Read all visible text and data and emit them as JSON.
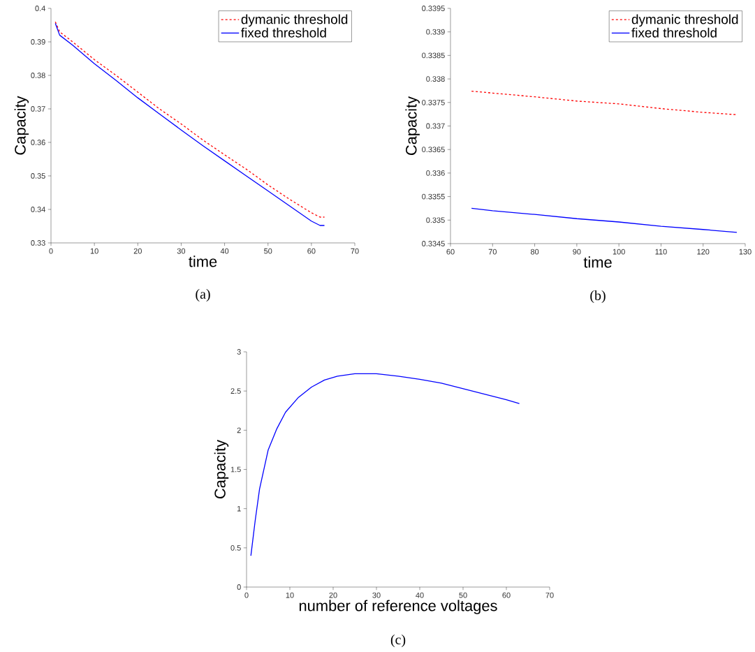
{
  "chart_data": [
    {
      "type": "line",
      "xlabel": "time",
      "ylabel": "Capacity",
      "xlim": [
        0,
        70
      ],
      "ylim": [
        0.33,
        0.4
      ],
      "xticks": [
        0,
        10,
        20,
        30,
        40,
        50,
        60,
        70
      ],
      "yticks": [
        0.33,
        0.34,
        0.35,
        0.36,
        0.37,
        0.38,
        0.39,
        0.4
      ],
      "legend": "top right",
      "grid": false,
      "marker": "none",
      "annotations": [
        "(a)"
      ],
      "x": [
        1,
        2,
        5,
        10,
        15,
        20,
        25,
        30,
        35,
        40,
        45,
        50,
        55,
        60,
        62,
        63
      ],
      "series": [
        {
          "name": "dymanic threshold",
          "color": "#ff0000",
          "line_style": "dashed",
          "values": [
            0.396,
            0.393,
            0.39,
            0.3847,
            0.38,
            0.375,
            0.37,
            0.3655,
            0.3607,
            0.3563,
            0.352,
            0.3473,
            0.343,
            0.339,
            0.3377,
            0.3377
          ]
        },
        {
          "name": "fixed threshold",
          "color": "#0000ff",
          "line_style": "solid",
          "values": [
            0.3955,
            0.392,
            0.389,
            0.3835,
            0.3785,
            0.3733,
            0.3685,
            0.3637,
            0.359,
            0.3545,
            0.35,
            0.3455,
            0.341,
            0.3365,
            0.3352,
            0.3352
          ]
        }
      ]
    },
    {
      "type": "line",
      "xlabel": "time",
      "ylabel": "Capacity",
      "xlim": [
        60,
        130
      ],
      "ylim": [
        0.3345,
        0.3395
      ],
      "xticks": [
        60,
        70,
        80,
        90,
        100,
        110,
        120,
        130
      ],
      "yticks": [
        0.3345,
        0.335,
        0.3355,
        0.336,
        0.3365,
        0.337,
        0.3375,
        0.338,
        0.3385,
        0.339,
        0.3395
      ],
      "legend": "top right",
      "grid": false,
      "marker": "none",
      "annotations": [
        "(b)"
      ],
      "x": [
        65,
        70,
        80,
        90,
        100,
        110,
        120,
        128
      ],
      "series": [
        {
          "name": "dymanic threshold",
          "color": "#ff0000",
          "line_style": "dashed",
          "values": [
            0.33774,
            0.3377,
            0.33762,
            0.33753,
            0.33747,
            0.33737,
            0.33729,
            0.33724
          ]
        },
        {
          "name": "fixed threshold",
          "color": "#0000ff",
          "line_style": "solid",
          "values": [
            0.33525,
            0.3352,
            0.33512,
            0.33503,
            0.33496,
            0.33487,
            0.3348,
            0.33474
          ]
        }
      ]
    },
    {
      "type": "line",
      "xlabel": "number of reference voltages",
      "ylabel": "Capacity",
      "xlim": [
        0,
        70
      ],
      "ylim": [
        0,
        3
      ],
      "xticks": [
        0,
        10,
        20,
        30,
        40,
        50,
        60,
        70
      ],
      "yticks": [
        0,
        0.5,
        1,
        1.5,
        2,
        2.5,
        3
      ],
      "legend": false,
      "grid": false,
      "marker": "none",
      "annotations": [
        "(c)"
      ],
      "x": [
        1,
        2,
        3,
        5,
        7,
        9,
        12,
        15,
        18,
        21,
        25,
        30,
        35,
        40,
        45,
        50,
        55,
        60,
        63
      ],
      "series": [
        {
          "color": "#0000ff",
          "line_style": "solid",
          "values": [
            0.4,
            0.85,
            1.25,
            1.75,
            2.02,
            2.23,
            2.42,
            2.55,
            2.64,
            2.69,
            2.72,
            2.72,
            2.69,
            2.65,
            2.6,
            2.53,
            2.46,
            2.39,
            2.34
          ]
        }
      ]
    }
  ]
}
